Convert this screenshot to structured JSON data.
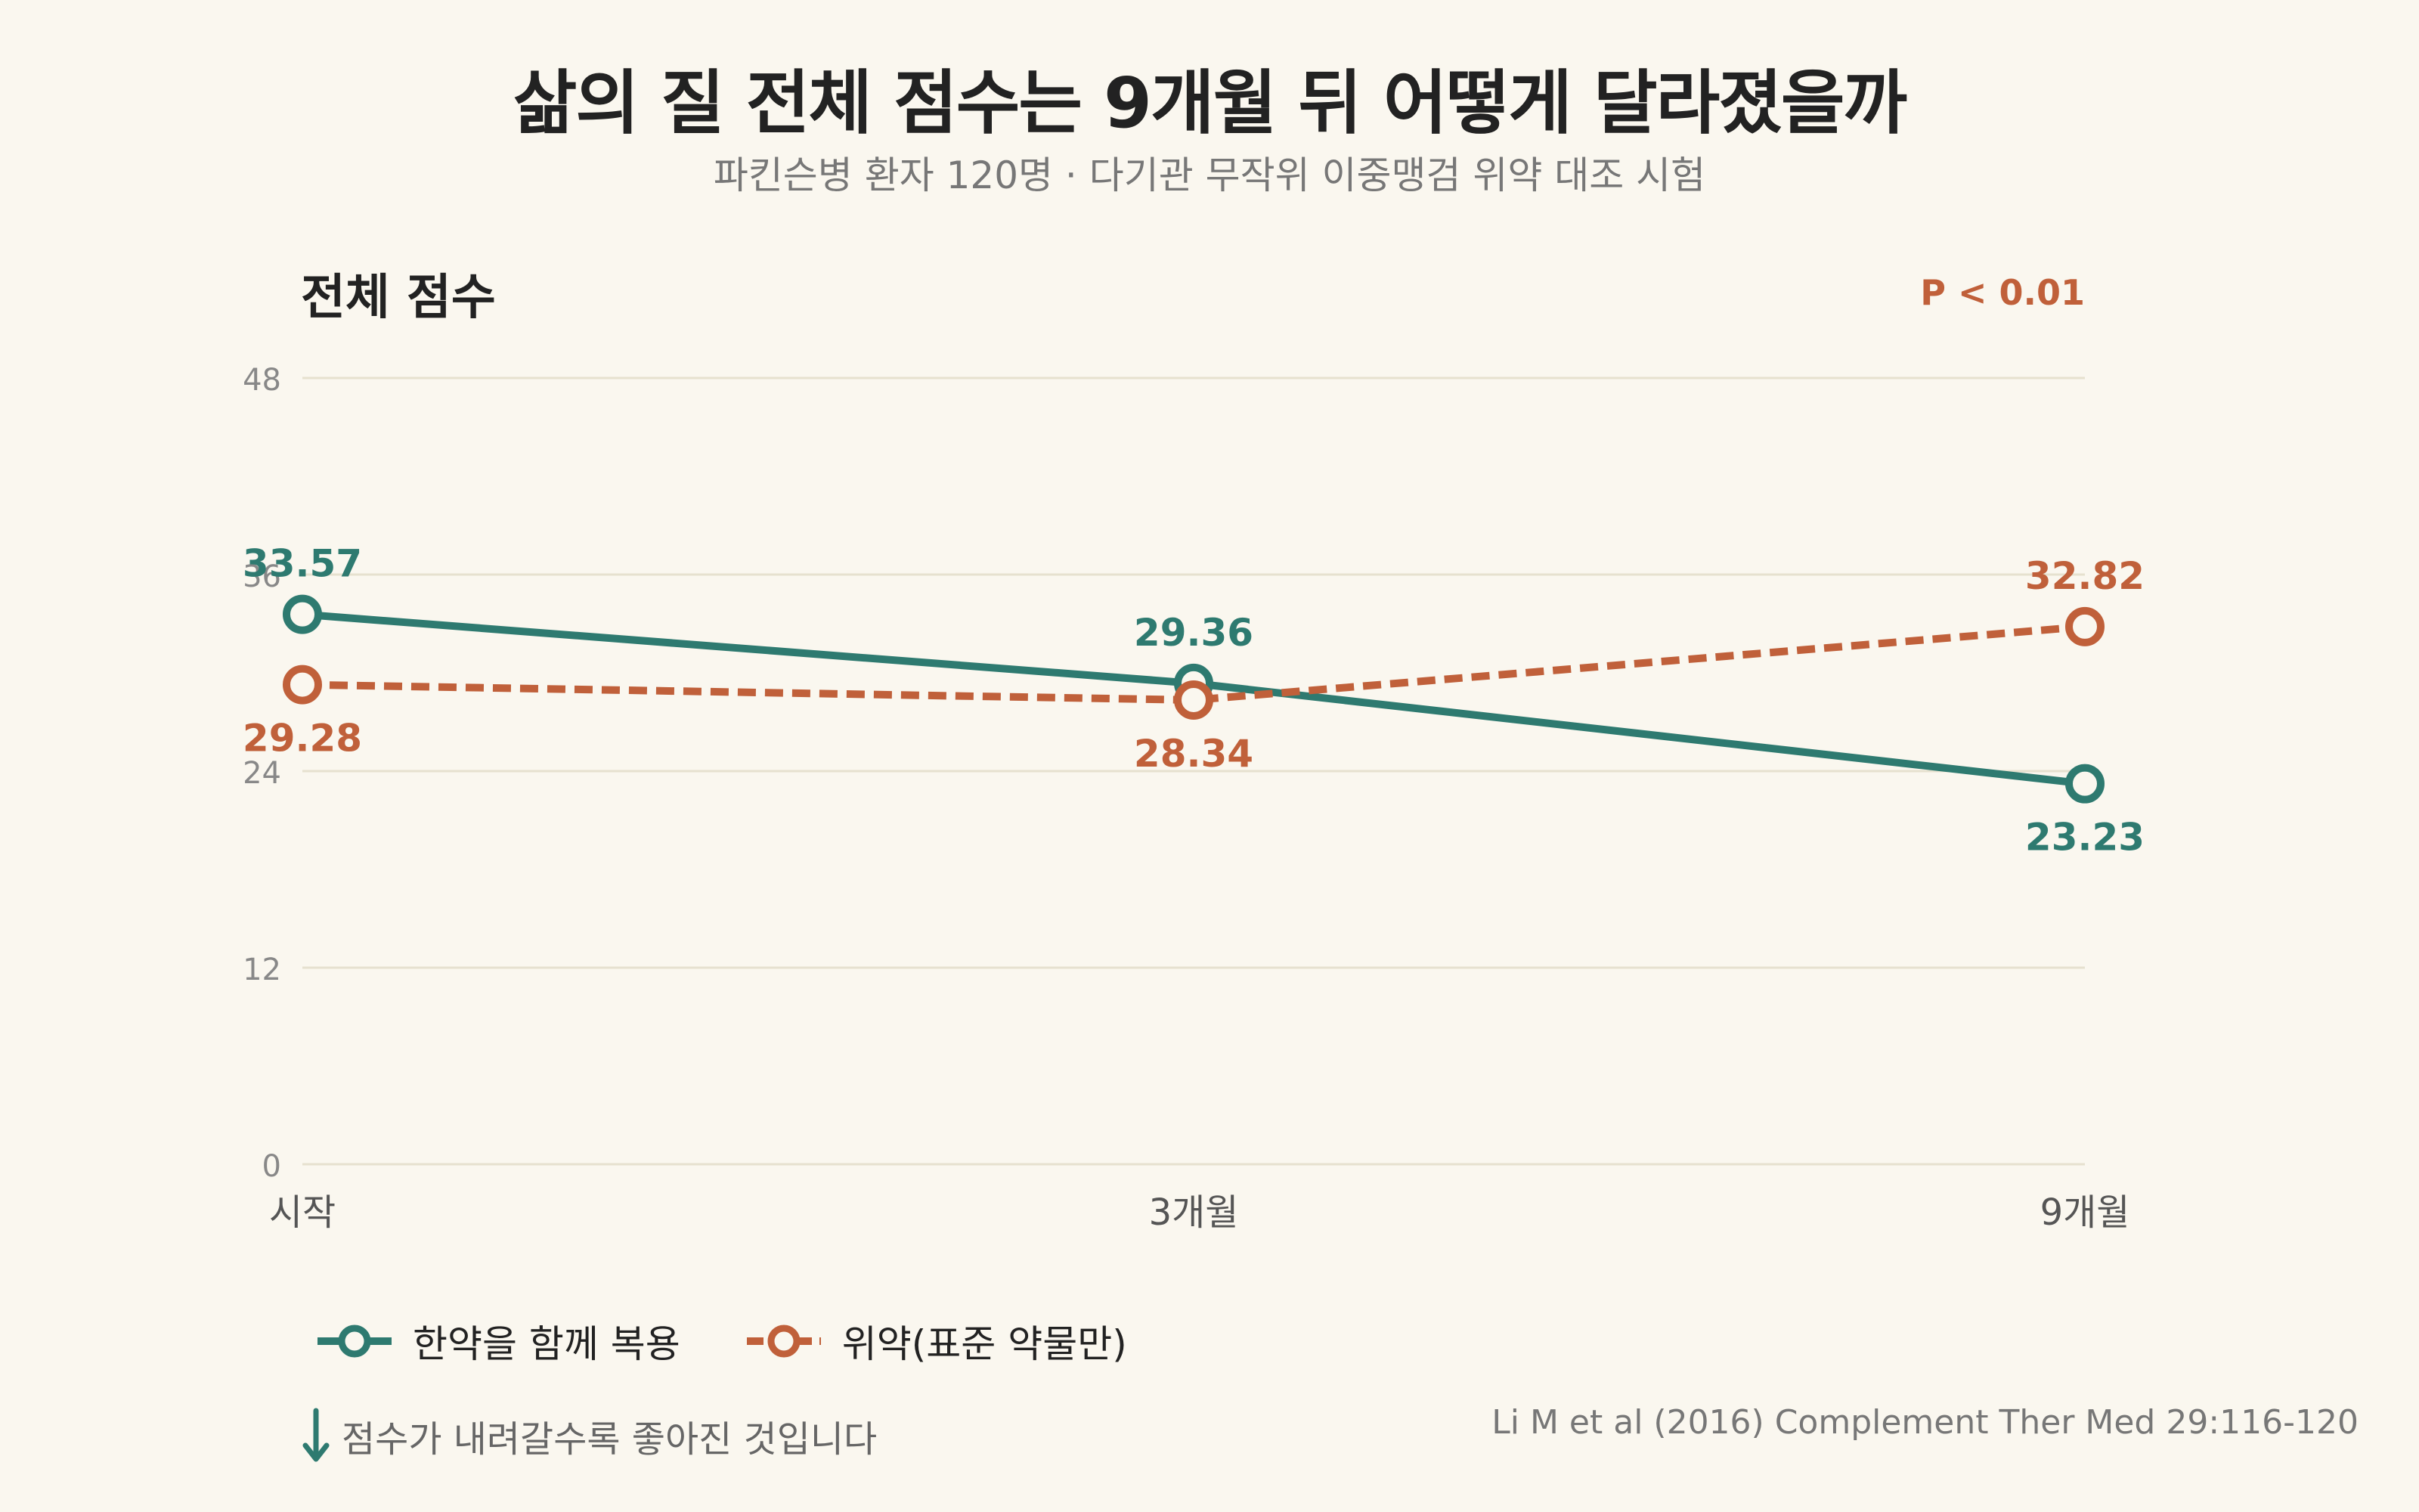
{
  "title": "삶의 질 전체 점수는 9개월 뒤 어떻게 달라졌을까",
  "subtitle": "파킨슨병 환자 120명 · 다기관 무작위 이중맹검 위약 대조 시험",
  "footnote": "점수가 내려갈수록 좋아진 것입니다",
  "source": "Li M et al (2016) Complement Ther Med 29:116-120",
  "colors": {
    "herbal": "#2e7a70",
    "placebo": "#c0603a",
    "grid": "#e6e1cf",
    "background": "#faf7ef"
  },
  "chart_data": {
    "type": "line",
    "title": "전체 점수",
    "annotation": "P < 0.01",
    "categories": [
      "시작",
      "3개월",
      "9개월"
    ],
    "ylim": [
      0,
      48
    ],
    "yticks": [
      "0",
      "12",
      "24",
      "36",
      "48"
    ],
    "grid": true,
    "legend_position": "bottom-left",
    "series": [
      {
        "name": "한약을 함께 복용",
        "values": [
          33.57,
          29.36,
          23.23
        ],
        "labels": [
          "33.57",
          "29.36",
          "23.23"
        ],
        "color": "#2e7a70",
        "style": "solid"
      },
      {
        "name": "위약(표준 약물만)",
        "values": [
          29.28,
          28.34,
          32.82
        ],
        "labels": [
          "29.28",
          "28.34",
          "32.82"
        ],
        "color": "#c0603a",
        "style": "dashed"
      }
    ]
  }
}
